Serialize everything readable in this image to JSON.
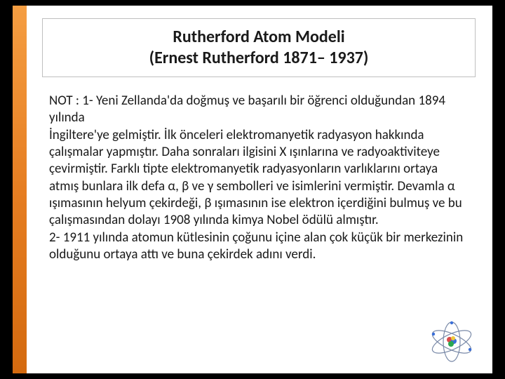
{
  "colors": {
    "page_bg": "#000000",
    "slide_bg": "#ffffff",
    "accent_gradient_top": "#f59e42",
    "accent_gradient_mid": "#e67e22",
    "accent_gradient_bot": "#d46a0f",
    "title_border": "#bfbfbf",
    "text_color": "#1a1a1a"
  },
  "typography": {
    "title_fontsize": 24,
    "title_weight": 700,
    "body_fontsize": 19,
    "body_weight": 400,
    "line_height": 1.28
  },
  "title": {
    "line1": "Rutherford Atom Modeli",
    "line2": "(Ernest Rutherford 1871– 1937)"
  },
  "body": "NOT : 1- Yeni Zellanda'da doğmuş ve başarılı bir öğrenci olduğundan 1894 yılında\nİngiltere'ye gelmiştir. İlk önceleri elektromanyetik radyasyon hakkında çalışmalar yapmıştır. Daha sonraları ilgisini X ışınlarına ve radyoaktiviteye çevirmiştir. Farklı tipte elektromanyetik radyasyonların varlıklarını ortaya atmış bunlara ilk defa α, β ve γ sembolleri ve isimlerini vermiştir. Devamla α ışımasının helyum çekirdeği, β ışımasının ise elektron içerdiğini bulmuş ve bu çalışmasından dolayı 1908 yılında kimya Nobel ödülü almıştır.\n2- 1911 yılında atomun kütlesinin çoğunu içine alan çok küçük bir merkezinin olduğunu ortaya attı ve buna çekirdek adını verdi.",
  "decor": {
    "atom_icon": {
      "orbits_color": "#7a8aa8",
      "nucleus_colors": [
        "#d94a4a",
        "#3a6fd9",
        "#2aa84f",
        "#efc83a"
      ],
      "electron_color": "#3a6fd9"
    }
  }
}
